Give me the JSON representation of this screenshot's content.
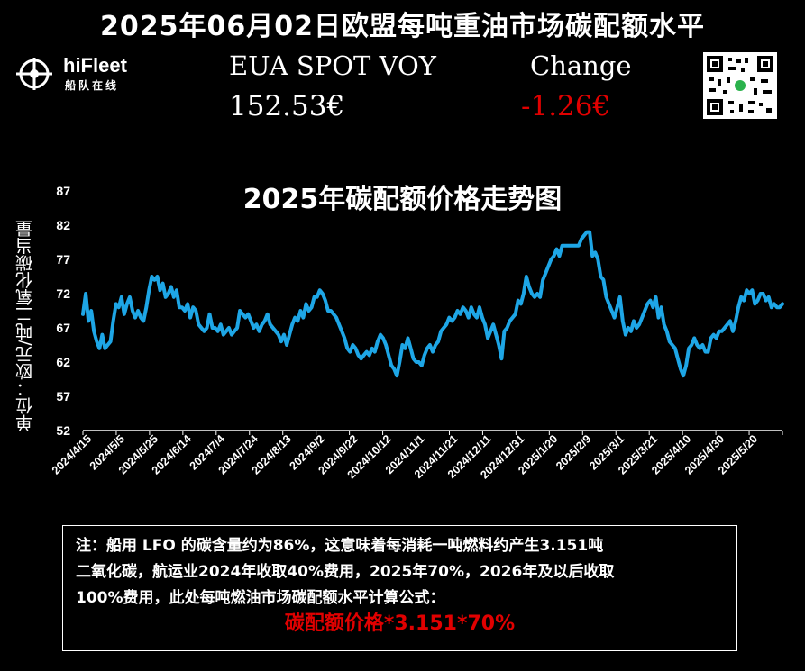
{
  "header": {
    "title": "2025年06月02日欧盟每吨重油市场碳配额水平",
    "logo_text": "hiFleet",
    "logo_sub": "船队在线",
    "eua_label": "EUA SPOT VOY",
    "eua_value": "152.53€",
    "change_label": "Change",
    "change_value": "-1.26€"
  },
  "colors": {
    "line": "#1ea6e6",
    "negative": "#e00000",
    "background": "#000000"
  },
  "chart_data": {
    "type": "line",
    "title": "2025年碳配额价格走势图",
    "ylabel": "单位：欧元/吨二氧化碳当量",
    "xlabel": "",
    "ylim": [
      52,
      87
    ],
    "yticks": [
      52,
      57,
      62,
      67,
      72,
      77,
      82,
      87
    ],
    "xticks": [
      "2024/4/15",
      "2024/5/5",
      "2024/5/25",
      "2024/6/14",
      "2024/7/4",
      "2024/7/24",
      "2024/8/13",
      "2024/9/2",
      "2024/9/22",
      "2024/10/12",
      "2024/11/1",
      "2024/11/21",
      "2024/12/11",
      "2024/12/31",
      "2025/1/20",
      "2025/2/9",
      "2025/3/1",
      "2025/3/21",
      "2025/4/10",
      "2025/4/30",
      "2025/5/20"
    ],
    "grid": false,
    "series": [
      {
        "values": [
          69.0,
          72.0,
          68.0,
          69.5,
          66.5,
          65.0,
          64.0,
          66.0,
          64.0,
          64.5,
          65.0,
          68.0,
          70.5,
          70.0,
          71.5,
          69.0,
          70.5,
          71.5,
          69.5,
          68.5,
          69.5,
          68.5,
          68.0,
          70.0,
          72.5,
          74.5,
          74.0,
          74.5,
          72.5,
          73.5,
          71.5,
          72.0,
          73.0,
          71.5,
          72.5,
          70.0,
          70.0,
          69.5,
          70.5,
          68.5,
          70.0,
          69.5,
          67.5,
          67.0,
          66.5,
          67.0,
          69.0,
          67.0,
          67.0,
          66.5,
          67.5,
          66.0,
          66.5,
          67.0,
          66.0,
          66.5,
          67.0,
          69.5,
          69.0,
          68.5,
          69.0,
          68.0,
          67.0,
          67.5,
          66.5,
          67.5,
          68.0,
          69.0,
          67.5,
          67.0,
          66.5,
          66.0,
          65.0,
          66.0,
          64.5,
          66.0,
          67.5,
          68.5,
          68.0,
          69.5,
          68.5,
          70.5,
          69.5,
          70.0,
          71.5,
          71.5,
          72.5,
          72.0,
          71.0,
          69.5,
          69.5,
          69.0,
          68.5,
          67.5,
          66.5,
          65.5,
          64.0,
          63.5,
          64.5,
          64.0,
          63.0,
          62.5,
          63.0,
          63.5,
          63.0,
          64.0,
          63.5,
          65.0,
          66.0,
          65.5,
          64.5,
          63.0,
          61.5,
          61.0,
          60.0,
          62.0,
          64.5,
          64.0,
          65.5,
          64.0,
          62.5,
          62.0,
          62.0,
          61.5,
          63.0,
          64.0,
          64.5,
          63.5,
          64.5,
          65.0,
          66.5,
          67.0,
          67.5,
          68.5,
          68.0,
          68.5,
          69.5,
          69.0,
          70.0,
          69.5,
          68.5,
          70.0,
          69.0,
          68.5,
          70.0,
          68.5,
          67.5,
          65.5,
          66.5,
          67.5,
          66.0,
          64.5,
          62.5,
          66.5,
          67.0,
          68.0,
          68.5,
          69.0,
          71.0,
          70.5,
          72.0,
          74.5,
          73.0,
          72.0,
          71.5,
          72.0,
          71.5,
          74.0,
          75.0,
          76.0,
          77.0,
          77.5,
          78.5,
          77.5,
          79.0,
          79.0,
          79.0,
          79.0,
          79.0,
          79.0,
          79.0,
          80.0,
          80.5,
          81.0,
          81.0,
          77.5,
          78.0,
          77.0,
          74.5,
          74.0,
          71.5,
          70.5,
          69.5,
          68.5,
          70.0,
          71.5,
          68.0,
          66.0,
          67.0,
          66.5,
          68.0,
          67.0,
          67.5,
          68.5,
          69.5,
          70.5,
          71.0,
          70.0,
          71.5,
          68.5,
          70.0,
          67.5,
          66.5,
          65.0,
          64.5,
          64.0,
          62.5,
          61.0,
          60.0,
          61.5,
          64.0,
          64.5,
          65.5,
          64.5,
          64.0,
          64.5,
          63.5,
          63.5,
          65.5,
          66.0,
          65.5,
          66.5,
          66.5,
          67.0,
          67.5,
          68.0,
          66.5,
          68.0,
          70.0,
          71.5,
          71.0,
          72.5,
          72.0,
          72.5,
          70.5,
          71.0,
          72.0,
          72.0,
          71.0,
          71.5,
          70.0,
          70.5,
          70.0,
          70.0,
          70.5
        ]
      }
    ]
  },
  "note": {
    "line1": "注：船用 LFO 的碳含量约为86%，这意味着每消耗一吨燃料约产生3.151吨",
    "line2": "二氧化碳，航运业2024年收取40%费用，2025年70%，2026年及以后收取",
    "line3": "100%费用，此处每吨燃油市场碳配额水平计算公式：",
    "formula": "碳配额价格*3.151*70%"
  }
}
